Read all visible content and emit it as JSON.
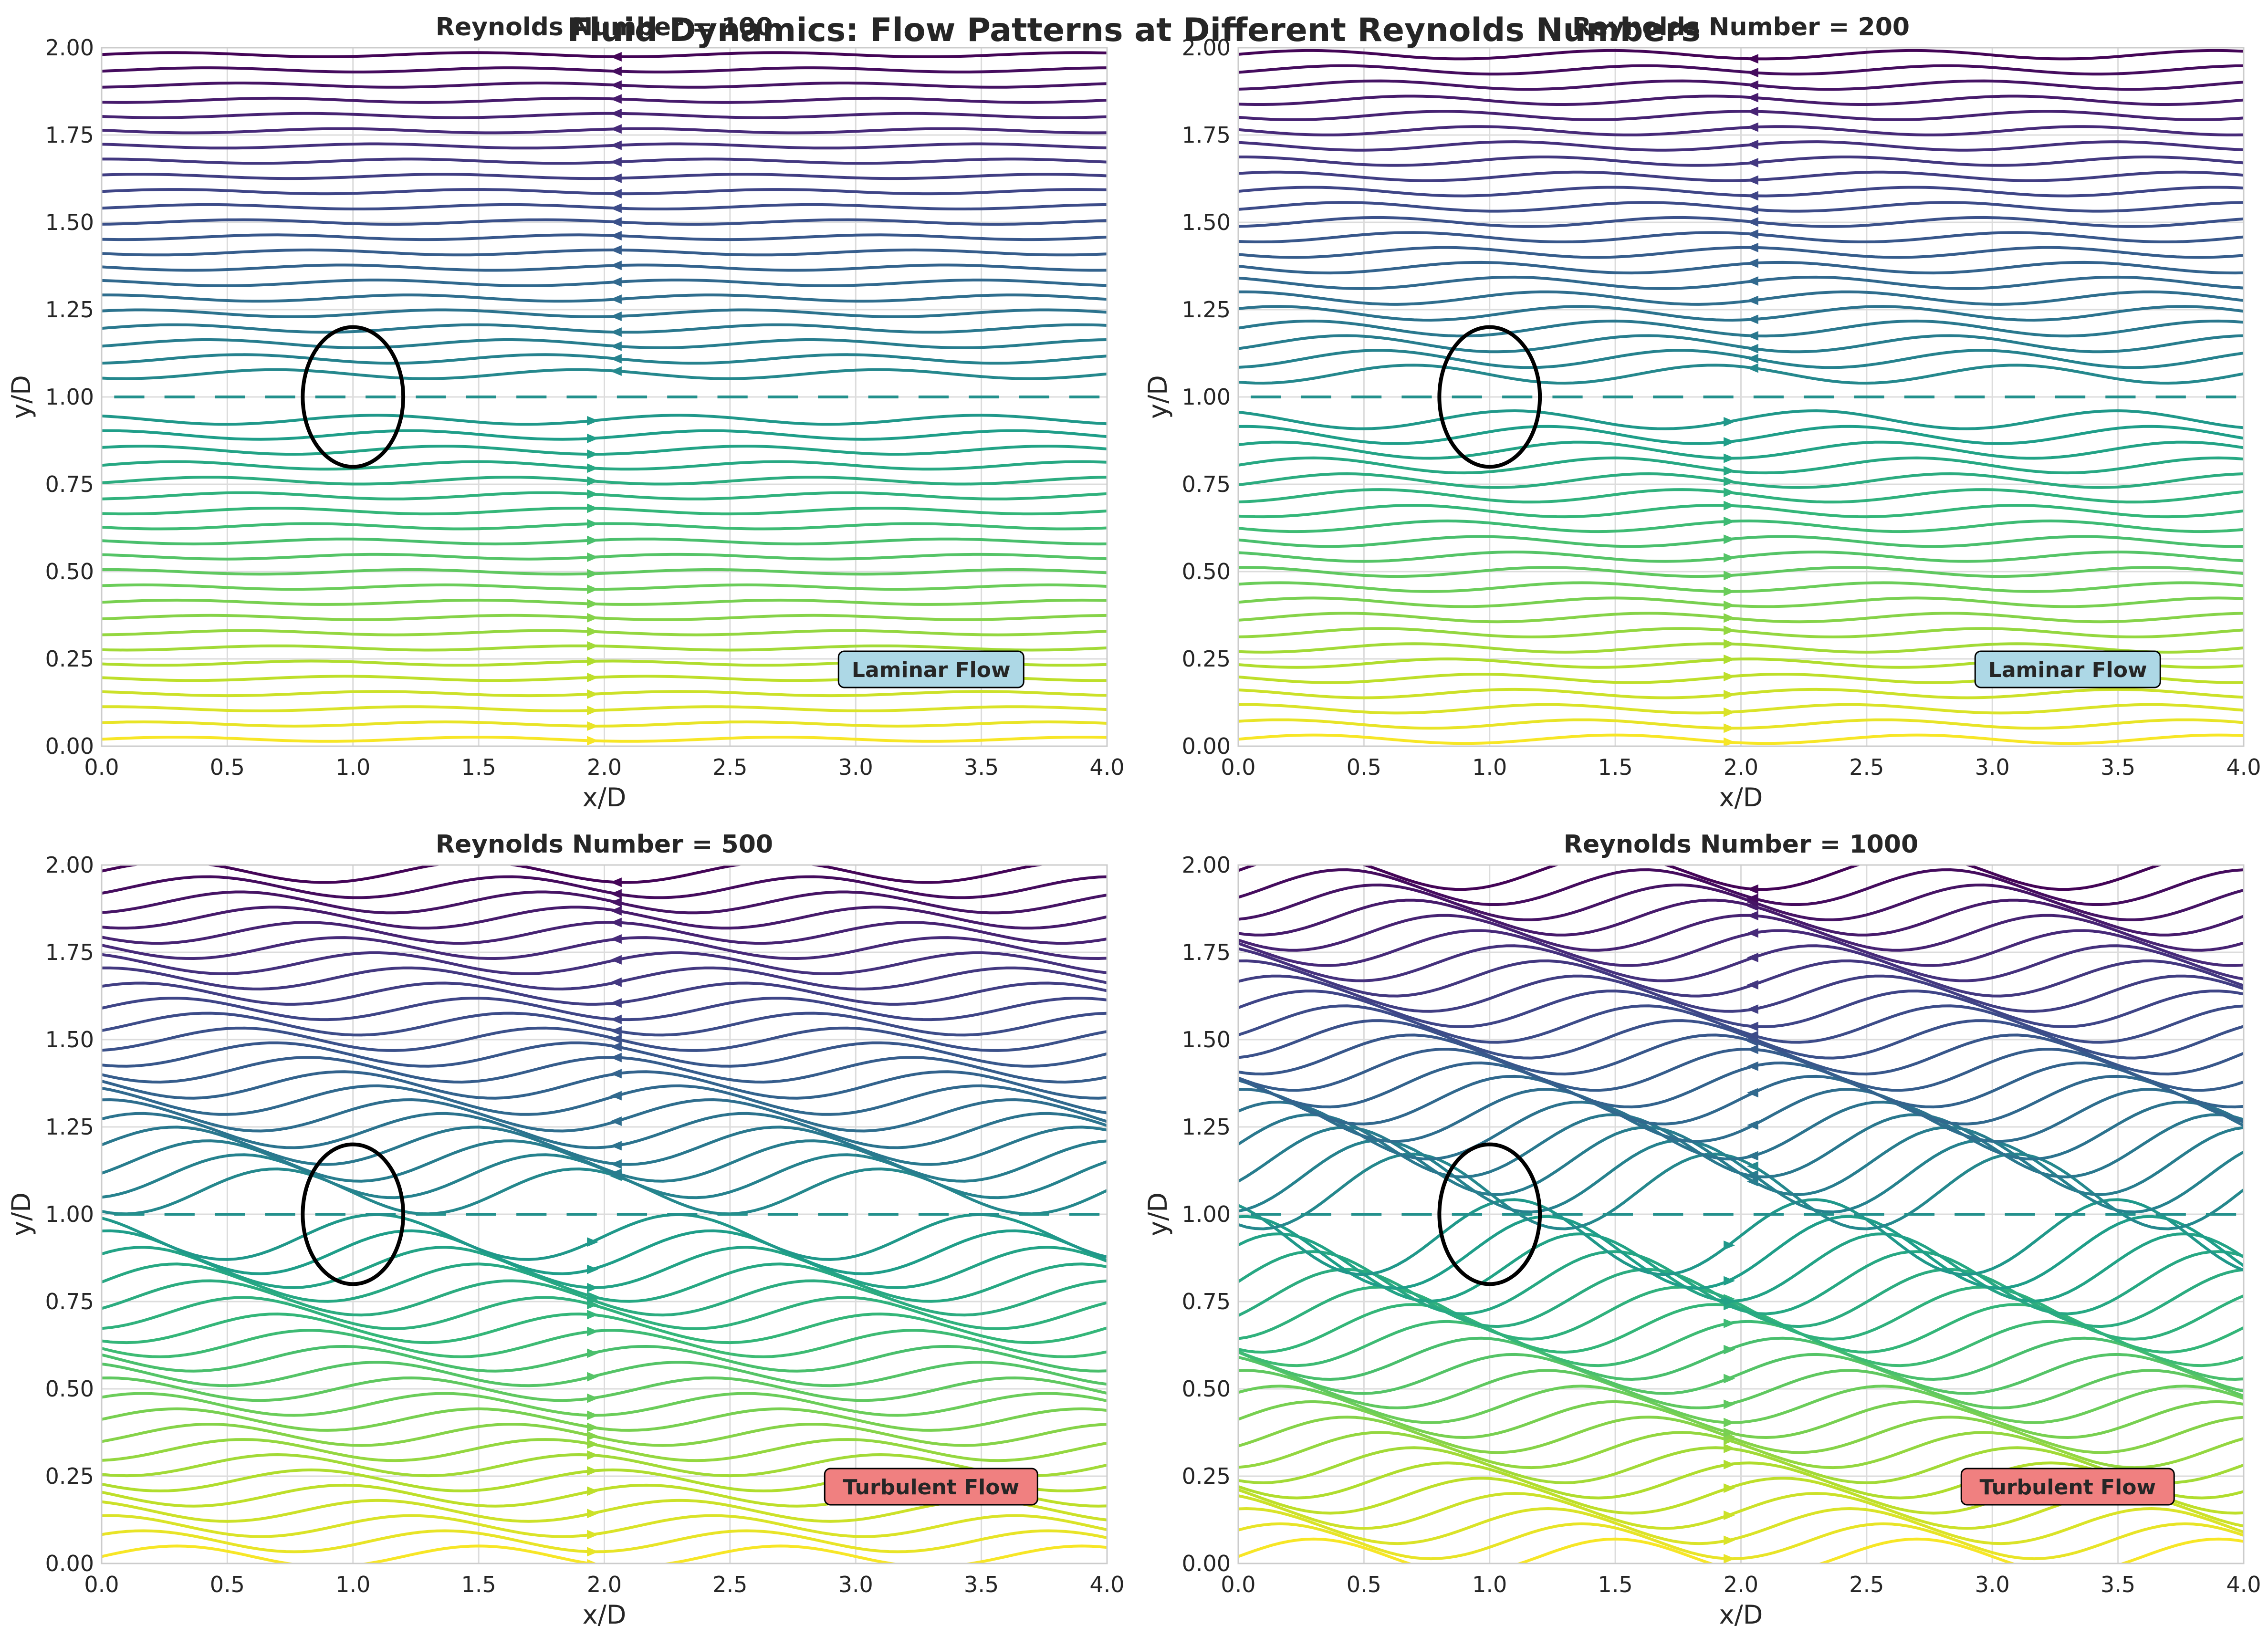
{
  "figure": {
    "suptitle": "Fluid Dynamics: Flow Patterns at Different Reynolds Numbers"
  },
  "colors": {
    "background": "#ffffff",
    "grid": "#dcdcdc",
    "spine": "#cccccc",
    "text": "#262626",
    "cylinder": "#000000",
    "laminar_box": "#add8e6",
    "turbulent_box": "#f08080",
    "colormap": "viridis"
  },
  "chart_data": [
    {
      "type": "streamplot",
      "title": "Reynolds Number = 100",
      "reynolds": 100,
      "xlabel": "x/D",
      "ylabel": "y/D",
      "xlim": [
        0,
        4
      ],
      "ylim": [
        0,
        2
      ],
      "xticks": [
        "0.0",
        "0.5",
        "1.0",
        "1.5",
        "2.0",
        "2.5",
        "3.0",
        "3.5",
        "4.0"
      ],
      "yticks": [
        "0.00",
        "0.25",
        "0.50",
        "0.75",
        "1.00",
        "1.25",
        "1.50",
        "1.75",
        "2.00"
      ],
      "grid": true,
      "cylinder": {
        "center": [
          1.0,
          1.0
        ],
        "radius": 0.2
      },
      "annotation": {
        "text": "Laminar Flow",
        "x": 3.3,
        "y": 0.22,
        "style": "laminar"
      },
      "wave_amplitude": 0.006,
      "streamline_color": "y-position (viridis, dark at top)"
    },
    {
      "type": "streamplot",
      "title": "Reynolds Number = 200",
      "reynolds": 200,
      "xlabel": "x/D",
      "ylabel": "y/D",
      "xlim": [
        0,
        4
      ],
      "ylim": [
        0,
        2
      ],
      "xticks": [
        "0.0",
        "0.5",
        "1.0",
        "1.5",
        "2.0",
        "2.5",
        "3.0",
        "3.5",
        "4.0"
      ],
      "yticks": [
        "0.00",
        "0.25",
        "0.50",
        "0.75",
        "1.00",
        "1.25",
        "1.50",
        "1.75",
        "2.00"
      ],
      "grid": true,
      "cylinder": {
        "center": [
          1.0,
          1.0
        ],
        "radius": 0.2
      },
      "annotation": {
        "text": "Laminar Flow",
        "x": 3.3,
        "y": 0.22,
        "style": "laminar"
      },
      "wave_amplitude": 0.012,
      "streamline_color": "y-position (viridis, dark at top)"
    },
    {
      "type": "streamplot",
      "title": "Reynolds Number = 500",
      "reynolds": 500,
      "xlabel": "x/D",
      "ylabel": "y/D",
      "xlim": [
        0,
        4
      ],
      "ylim": [
        0,
        2
      ],
      "xticks": [
        "0.0",
        "0.5",
        "1.0",
        "1.5",
        "2.0",
        "2.5",
        "3.0",
        "3.5",
        "4.0"
      ],
      "yticks": [
        "0.00",
        "0.25",
        "0.50",
        "0.75",
        "1.00",
        "1.25",
        "1.50",
        "1.75",
        "2.00"
      ],
      "grid": true,
      "cylinder": {
        "center": [
          1.0,
          1.0
        ],
        "radius": 0.2
      },
      "annotation": {
        "text": "Turbulent Flow",
        "x": 3.3,
        "y": 0.22,
        "style": "turbulent"
      },
      "wave_amplitude": 0.03,
      "streamline_color": "y-position (viridis, dark at top)"
    },
    {
      "type": "streamplot",
      "title": "Reynolds Number = 1000",
      "reynolds": 1000,
      "xlabel": "x/D",
      "ylabel": "y/D",
      "xlim": [
        0,
        4
      ],
      "ylim": [
        0,
        2
      ],
      "xticks": [
        "0.0",
        "0.5",
        "1.0",
        "1.5",
        "2.0",
        "2.5",
        "3.0",
        "3.5",
        "4.0"
      ],
      "yticks": [
        "0.00",
        "0.25",
        "0.50",
        "0.75",
        "1.00",
        "1.25",
        "1.50",
        "1.75",
        "2.00"
      ],
      "grid": true,
      "cylinder": {
        "center": [
          1.0,
          1.0
        ],
        "radius": 0.2
      },
      "annotation": {
        "text": "Turbulent Flow",
        "x": 3.3,
        "y": 0.22,
        "style": "turbulent"
      },
      "wave_amplitude": 0.05,
      "streamline_color": "y-position (viridis, dark at top)"
    }
  ]
}
